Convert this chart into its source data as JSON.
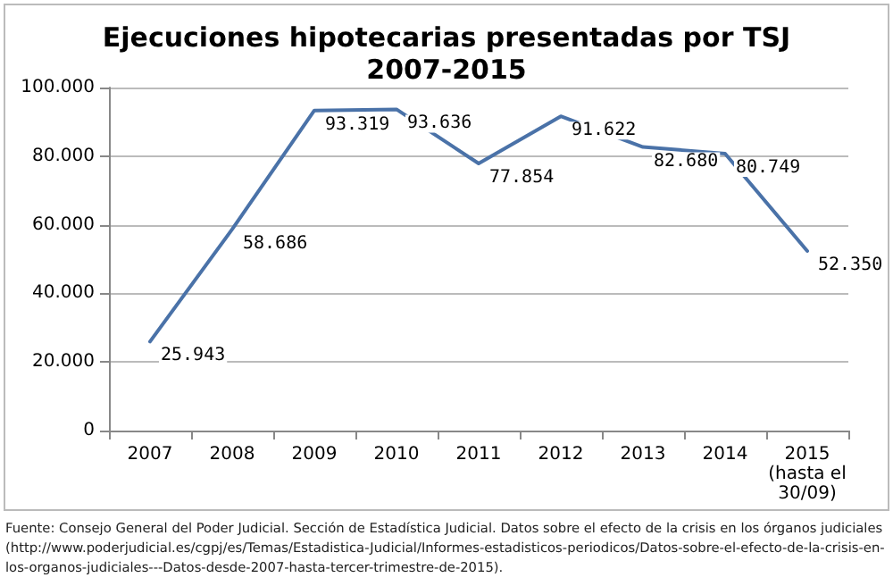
{
  "chart_data": {
    "type": "line",
    "title": "Ejecuciones hipotecarias presentadas por TSJ\n2007-2015",
    "categories": [
      "2007",
      "2008",
      "2009",
      "2010",
      "2011",
      "2012",
      "2013",
      "2014",
      "2015\n(hasta el\n30/09)"
    ],
    "series": [
      {
        "color": "#4a72a8",
        "values": [
          25943,
          58686,
          93319,
          93636,
          77854,
          91622,
          82680,
          80749,
          52350
        ],
        "value_labels": [
          "25.943",
          "58.686",
          "93.319",
          "93.636",
          "77.854",
          "91.622",
          "82.680",
          "80.749",
          "52.350"
        ]
      }
    ],
    "ylim": [
      0,
      100000
    ],
    "yticks": [
      {
        "value": 0,
        "label": "0"
      },
      {
        "value": 20000,
        "label": "20.000"
      },
      {
        "value": 40000,
        "label": "40.000"
      },
      {
        "value": 60000,
        "label": "60.000"
      },
      {
        "value": 80000,
        "label": "80.000"
      },
      {
        "value": 100000,
        "label": "100.000"
      }
    ],
    "grid": "y",
    "marker": "none",
    "line_style": "solid",
    "annotations": [
      "Fuente: Consejo General del Poder Judicial. Sección de Estadística Judicial. Datos sobre el efecto de la crisis en los órganos judiciales (http://www.poderjudicial.es/cgpj/es/Temas/Estadistica-Judicial/Informes-estadisticos-periodicos/Datos-sobre-el-efecto-de-la-crisis-en-los-organos-judiciales---Datos-desde-2007-hasta-tercer-trimestre-de-2015)."
    ]
  }
}
